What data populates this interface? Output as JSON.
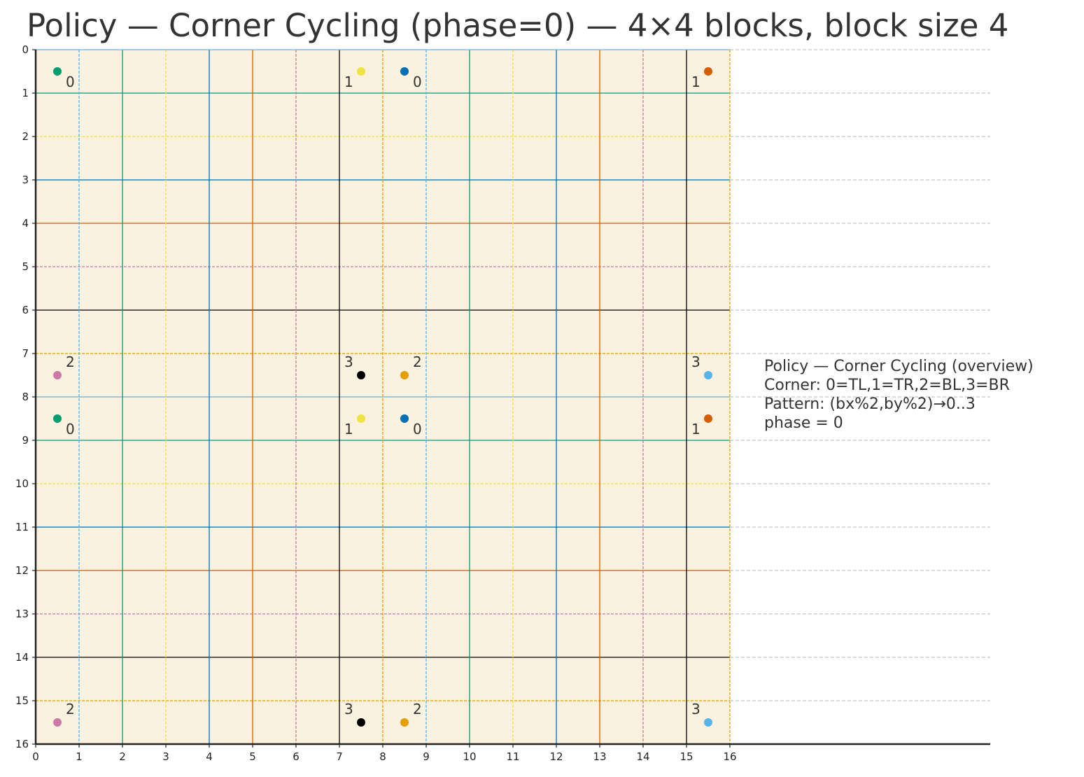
{
  "chart_data": {
    "type": "scatter",
    "title": "Policy — Corner Cycling (phase=0) — 4×4 blocks, block size 4",
    "xlabel": "",
    "ylabel": "",
    "xlim": [
      0,
      16
    ],
    "ylim": [
      16,
      0
    ],
    "x_ticks": [
      "0",
      "1",
      "2",
      "3",
      "4",
      "5",
      "6",
      "7",
      "8",
      "9",
      "10",
      "11",
      "12",
      "13",
      "14",
      "15",
      "16"
    ],
    "y_ticks": [
      "0",
      "1",
      "2",
      "3",
      "4",
      "5",
      "6",
      "7",
      "8",
      "9",
      "10",
      "11",
      "12",
      "13",
      "14",
      "15",
      "16"
    ],
    "grid_colors": [
      "#56b4e9",
      "#009e73",
      "#f0e442",
      "#0072b2",
      "#d55e00",
      "#cc79a7",
      "#000000",
      "#e69f00"
    ],
    "background_color": "#fbf1df",
    "points": [
      {
        "x": 0.5,
        "y": 0.5,
        "label": "0",
        "color": "#009e73"
      },
      {
        "x": 7.5,
        "y": 0.5,
        "label": "1",
        "color": "#f0e442"
      },
      {
        "x": 8.5,
        "y": 0.5,
        "label": "0",
        "color": "#0072b2"
      },
      {
        "x": 15.5,
        "y": 0.5,
        "label": "1",
        "color": "#d55e00"
      },
      {
        "x": 0.5,
        "y": 7.5,
        "label": "2",
        "color": "#cc79a7"
      },
      {
        "x": 7.5,
        "y": 7.5,
        "label": "3",
        "color": "#000000"
      },
      {
        "x": 8.5,
        "y": 7.5,
        "label": "2",
        "color": "#e69f00"
      },
      {
        "x": 15.5,
        "y": 7.5,
        "label": "3",
        "color": "#56b4e9"
      },
      {
        "x": 0.5,
        "y": 8.5,
        "label": "0",
        "color": "#009e73"
      },
      {
        "x": 7.5,
        "y": 8.5,
        "label": "1",
        "color": "#f0e442"
      },
      {
        "x": 8.5,
        "y": 8.5,
        "label": "0",
        "color": "#0072b2"
      },
      {
        "x": 15.5,
        "y": 8.5,
        "label": "1",
        "color": "#d55e00"
      },
      {
        "x": 0.5,
        "y": 15.5,
        "label": "2",
        "color": "#cc79a7"
      },
      {
        "x": 7.5,
        "y": 15.5,
        "label": "3",
        "color": "#000000"
      },
      {
        "x": 8.5,
        "y": 15.5,
        "label": "2",
        "color": "#e69f00"
      },
      {
        "x": 15.5,
        "y": 15.5,
        "label": "3",
        "color": "#56b4e9"
      }
    ],
    "annotation": {
      "lines": [
        "Policy — Corner Cycling (overview)",
        "Corner: 0=TL,1=TR,2=BL,3=BR",
        "Pattern: (bx%2,by%2)→0..3",
        "phase = 0"
      ]
    }
  }
}
